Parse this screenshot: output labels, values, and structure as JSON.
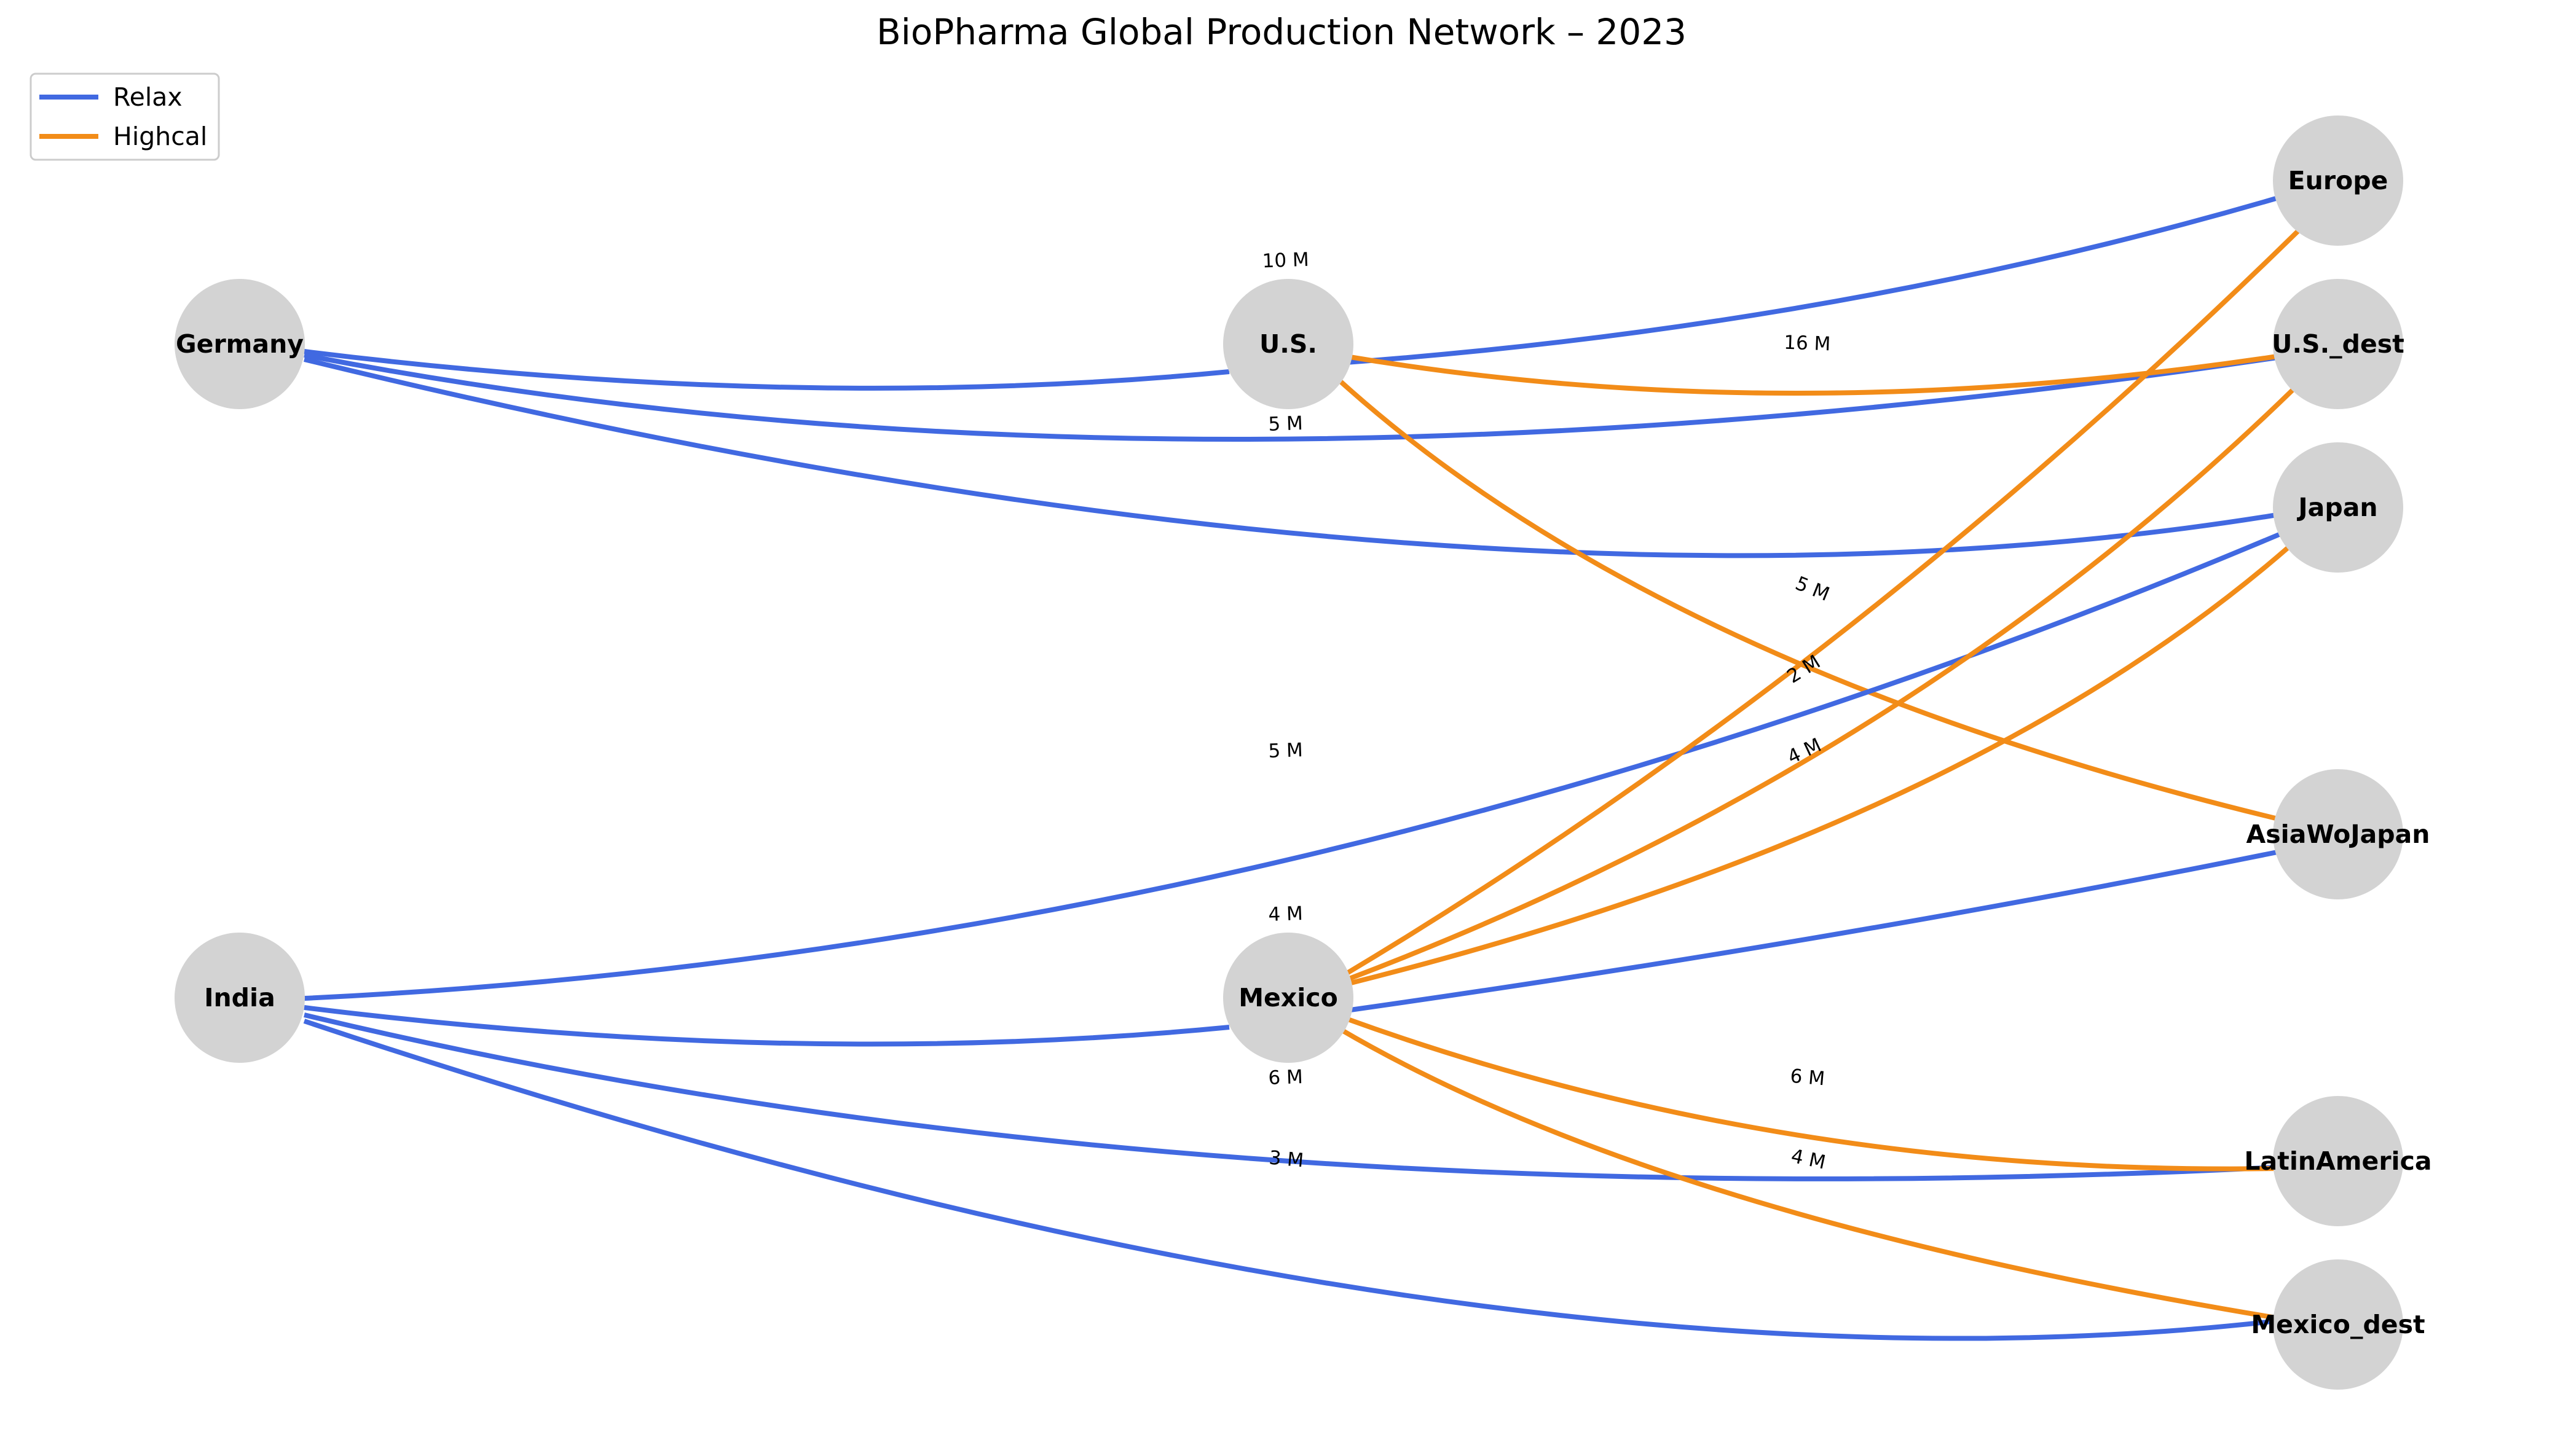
{
  "title": "BioPharma Global Production Network – 2023",
  "legend": {
    "items": [
      {
        "key": "relax",
        "label": "Relax",
        "color": "#4169e1"
      },
      {
        "key": "highcal",
        "label": "Highcal",
        "color": "#f28c18"
      }
    ]
  },
  "nodes": [
    {
      "id": "germany",
      "label": "Germany"
    },
    {
      "id": "india",
      "label": "India"
    },
    {
      "id": "us",
      "label": "U.S."
    },
    {
      "id": "mexico",
      "label": "Mexico"
    },
    {
      "id": "europe",
      "label": "Europe"
    },
    {
      "id": "us_dest",
      "label": "U.S._dest"
    },
    {
      "id": "japan",
      "label": "Japan"
    },
    {
      "id": "asiawojapan",
      "label": "AsiaWoJapan"
    },
    {
      "id": "latinamerica",
      "label": "LatinAmerica"
    },
    {
      "id": "mexico_dest",
      "label": "Mexico_dest"
    }
  ],
  "edges": [
    {
      "id": "germany-us",
      "from": "Germany",
      "to": "U.S.",
      "type": "relax",
      "label": "10 M"
    },
    {
      "id": "germany-usdest",
      "from": "Germany",
      "to": "U.S._dest",
      "type": "relax",
      "label": "5 M"
    },
    {
      "id": "germany-japan",
      "from": "Germany",
      "to": "Japan",
      "type": "relax",
      "label": "5 M"
    },
    {
      "id": "us-europe",
      "from": "U.S.",
      "to": "Europe",
      "type": "relax",
      "label": ""
    },
    {
      "id": "us-usdest",
      "from": "U.S.",
      "to": "U.S._dest",
      "type": "highcal",
      "label": "16 M"
    },
    {
      "id": "us-asiawojapan",
      "from": "U.S.",
      "to": "AsiaWoJapan",
      "type": "highcal",
      "label": "5 M"
    },
    {
      "id": "india-mexico",
      "from": "India",
      "to": "Mexico",
      "type": "relax",
      "label": "4 M"
    },
    {
      "id": "india-japan",
      "from": "India",
      "to": "Japan",
      "type": "relax",
      "label": ""
    },
    {
      "id": "india-latinamerica",
      "from": "India",
      "to": "LatinAmerica",
      "type": "relax",
      "label": "6 M"
    },
    {
      "id": "india-mexicodest",
      "from": "India",
      "to": "Mexico_dest",
      "type": "relax",
      "label": "3 M"
    },
    {
      "id": "mexico-europe",
      "from": "Mexico",
      "to": "Europe",
      "type": "highcal",
      "label": "2 M"
    },
    {
      "id": "mexico-usdest",
      "from": "Mexico",
      "to": "U.S._dest",
      "type": "highcal",
      "label": "4 M"
    },
    {
      "id": "mexico-japan",
      "from": "Mexico",
      "to": "Japan",
      "type": "highcal",
      "label": ""
    },
    {
      "id": "mexico-asiawojapan",
      "from": "Mexico",
      "to": "AsiaWoJapan",
      "type": "relax",
      "label": ""
    },
    {
      "id": "mexico-latinamerica",
      "from": "Mexico",
      "to": "LatinAmerica",
      "type": "highcal",
      "label": "6 M"
    },
    {
      "id": "mexico-mexicodest",
      "from": "Mexico",
      "to": "Mexico_dest",
      "type": "highcal",
      "label": "4 M"
    }
  ]
}
